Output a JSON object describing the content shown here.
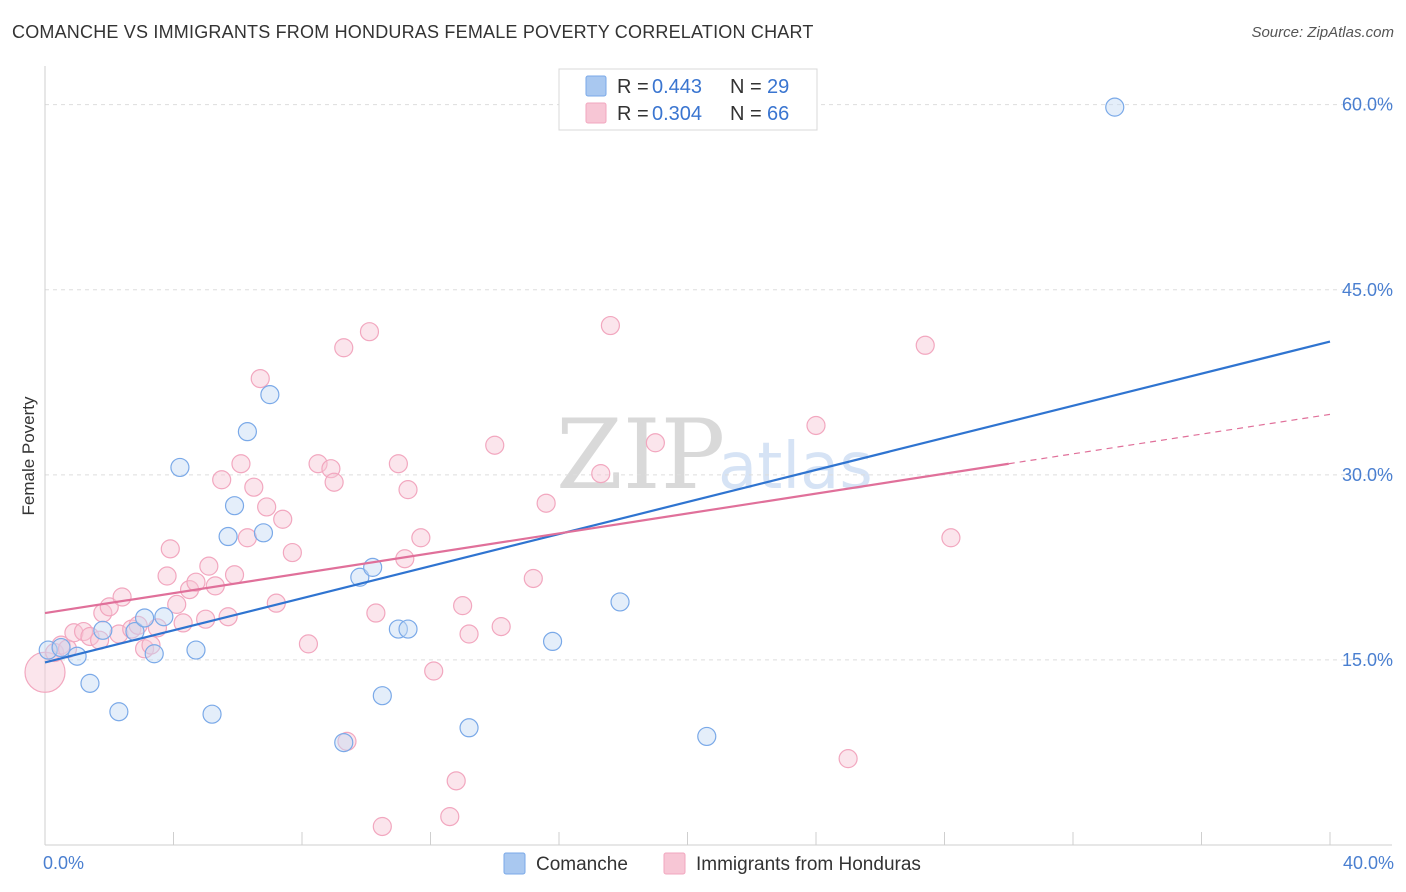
{
  "title": "COMANCHE VS IMMIGRANTS FROM HONDURAS FEMALE POVERTY CORRELATION CHART",
  "source": "Source: ZipAtlas.com",
  "watermark": {
    "part1": "ZIP",
    "part2": "atlas"
  },
  "legend": {
    "r_label": "R =",
    "n_label": "N =",
    "rows": [
      {
        "r": "0.443",
        "n": "29",
        "color": "#a9c8f0"
      },
      {
        "r": "0.304",
        "n": "66",
        "color": "#f7b8cb"
      }
    ]
  },
  "bottom_legend": [
    "Comanche",
    "Immigrants from Honduras"
  ],
  "chart_data": {
    "type": "scatter",
    "title": "COMANCHE VS IMMIGRANTS FROM HONDURAS FEMALE POVERTY CORRELATION CHART",
    "xlabel": "",
    "ylabel": "Female Poverty",
    "xlim": [
      0,
      40
    ],
    "ylim": [
      0,
      62
    ],
    "x_tick_labels": [
      "0.0%",
      "40.0%"
    ],
    "y_ticks": [
      15,
      30,
      45,
      60
    ],
    "y_tick_labels": [
      "15.0%",
      "30.0%",
      "45.0%",
      "60.0%"
    ],
    "grid": "horizontal dashed",
    "series": [
      {
        "name": "Comanche",
        "color": "#7aa9e8",
        "line_color": "#2f74d0",
        "trend": {
          "x0": 0.0,
          "y0": 14.8,
          "x1": 40.0,
          "y1": 40.8
        },
        "points": [
          [
            0.1,
            15.8
          ],
          [
            0.5,
            16.0
          ],
          [
            1.0,
            15.3
          ],
          [
            1.4,
            13.1
          ],
          [
            1.8,
            17.4
          ],
          [
            2.3,
            10.8
          ],
          [
            2.8,
            17.3
          ],
          [
            3.1,
            18.4
          ],
          [
            3.4,
            15.5
          ],
          [
            3.7,
            18.5
          ],
          [
            4.2,
            30.6
          ],
          [
            4.7,
            15.8
          ],
          [
            5.2,
            10.6
          ],
          [
            5.7,
            25.0
          ],
          [
            5.9,
            27.5
          ],
          [
            6.3,
            33.5
          ],
          [
            6.8,
            25.3
          ],
          [
            7.0,
            36.5
          ],
          [
            9.3,
            8.3
          ],
          [
            9.8,
            21.7
          ],
          [
            10.2,
            22.5
          ],
          [
            10.5,
            12.1
          ],
          [
            11.0,
            17.5
          ],
          [
            11.3,
            17.5
          ],
          [
            13.2,
            9.5
          ],
          [
            15.8,
            16.5
          ],
          [
            17.9,
            19.7
          ],
          [
            20.6,
            8.8
          ],
          [
            33.3,
            59.8
          ]
        ]
      },
      {
        "name": "Immigrants from Honduras",
        "color": "#f2a7bf",
        "line_color": "#e0709a",
        "trend": {
          "x0": 0.0,
          "y0": 18.8,
          "x1": 30.0,
          "y1": 30.9
        },
        "trend_extension": {
          "x0": 30.0,
          "y0": 30.9,
          "x1": 40.0,
          "y1": 34.9
        },
        "points": [
          [
            0.0,
            14.0
          ],
          [
            0.3,
            15.6
          ],
          [
            0.5,
            16.2
          ],
          [
            0.7,
            15.9
          ],
          [
            0.9,
            17.2
          ],
          [
            1.2,
            17.3
          ],
          [
            1.4,
            16.9
          ],
          [
            1.7,
            16.6
          ],
          [
            1.8,
            18.8
          ],
          [
            2.0,
            19.3
          ],
          [
            2.3,
            17.1
          ],
          [
            2.4,
            20.1
          ],
          [
            2.7,
            17.5
          ],
          [
            2.9,
            17.8
          ],
          [
            3.1,
            15.9
          ],
          [
            3.3,
            16.2
          ],
          [
            3.5,
            17.6
          ],
          [
            3.8,
            21.8
          ],
          [
            3.9,
            24.0
          ],
          [
            4.1,
            19.5
          ],
          [
            4.3,
            18.0
          ],
          [
            4.5,
            20.7
          ],
          [
            4.7,
            21.3
          ],
          [
            5.0,
            18.3
          ],
          [
            5.1,
            22.6
          ],
          [
            5.3,
            21.0
          ],
          [
            5.5,
            29.6
          ],
          [
            5.7,
            18.5
          ],
          [
            5.9,
            21.9
          ],
          [
            6.1,
            30.9
          ],
          [
            6.3,
            24.9
          ],
          [
            6.5,
            29.0
          ],
          [
            6.7,
            37.8
          ],
          [
            6.9,
            27.4
          ],
          [
            7.2,
            19.6
          ],
          [
            7.4,
            26.4
          ],
          [
            7.7,
            23.7
          ],
          [
            8.2,
            16.3
          ],
          [
            8.5,
            30.9
          ],
          [
            8.9,
            30.5
          ],
          [
            9.0,
            29.4
          ],
          [
            9.3,
            40.3
          ],
          [
            9.4,
            8.4
          ],
          [
            10.1,
            41.6
          ],
          [
            10.3,
            18.8
          ],
          [
            10.5,
            1.5
          ],
          [
            11.0,
            30.9
          ],
          [
            11.2,
            23.2
          ],
          [
            11.3,
            28.8
          ],
          [
            11.7,
            24.9
          ],
          [
            12.1,
            14.1
          ],
          [
            12.6,
            2.3
          ],
          [
            12.8,
            5.2
          ],
          [
            13.0,
            19.4
          ],
          [
            13.2,
            17.1
          ],
          [
            14.0,
            32.4
          ],
          [
            14.2,
            17.7
          ],
          [
            15.2,
            21.6
          ],
          [
            15.6,
            27.7
          ],
          [
            17.3,
            30.1
          ],
          [
            17.6,
            42.1
          ],
          [
            19.0,
            32.6
          ],
          [
            24.0,
            34.0
          ],
          [
            25.0,
            7.0
          ],
          [
            27.4,
            40.5
          ],
          [
            28.2,
            24.9
          ]
        ]
      }
    ]
  }
}
